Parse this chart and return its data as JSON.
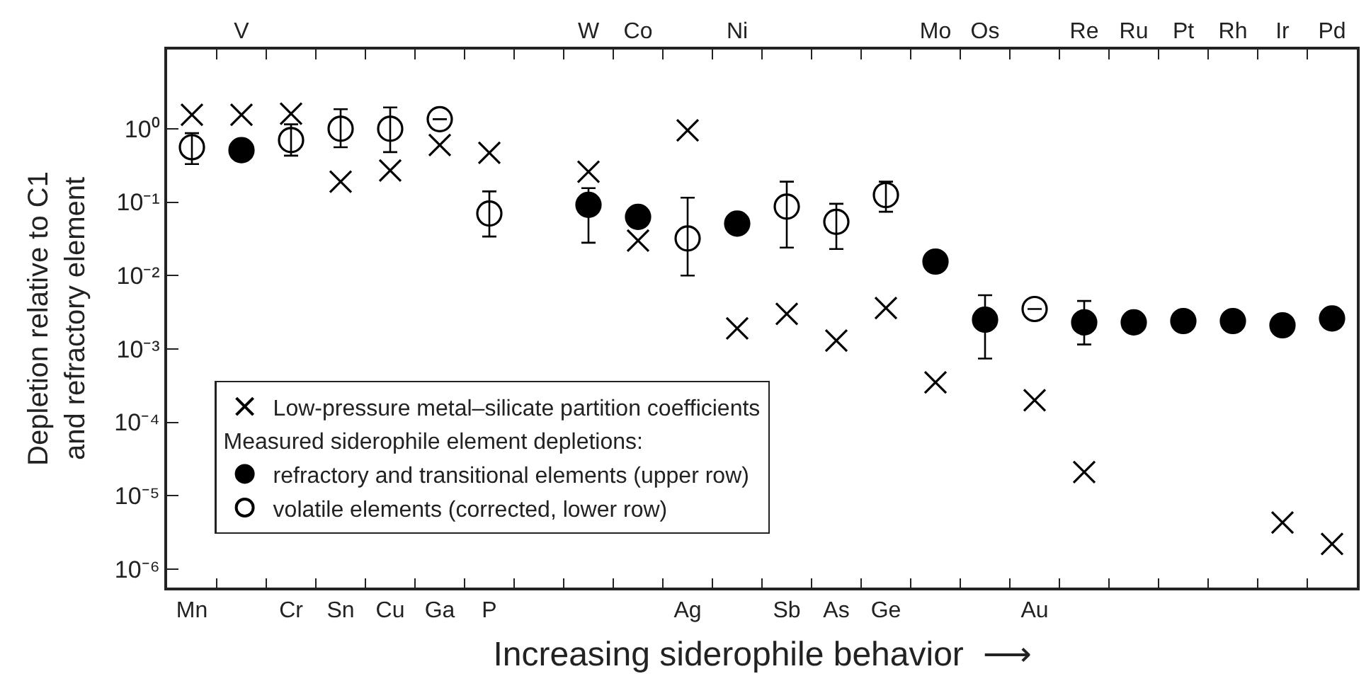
{
  "chart_data": {
    "type": "scatter",
    "xlabel": "Increasing siderophile behavior  ⟶",
    "ylabel": "Depletion relative to C1\nand refractory element",
    "categories": [
      "Mn",
      "V",
      "Cr",
      "Sn",
      "Cu",
      "Ga",
      "P",
      null,
      "W",
      "Co",
      "Ag",
      "Ni",
      "Sb",
      "As",
      "Ge",
      "Mo",
      "Os",
      "Au",
      "Re",
      "Ru",
      "Pt",
      "Rh",
      "Ir",
      "Pd"
    ],
    "log": "y",
    "ylim": [
      5.6e-07,
      12
    ],
    "yticks": [
      {
        "value": 1,
        "label": "10⁰"
      },
      {
        "value": 0.1,
        "label": "10⁻¹"
      },
      {
        "value": 0.01,
        "label": "10⁻²"
      },
      {
        "value": 0.001,
        "label": "10⁻³"
      },
      {
        "value": 0.0001,
        "label": "10⁻⁴"
      },
      {
        "value": 1e-05,
        "label": "10⁻⁵"
      },
      {
        "value": 1e-06,
        "label": "10⁻⁶"
      }
    ],
    "legend": "bottom left",
    "legend_title": "Measured siderophile element depletions:",
    "series": [
      {
        "name": "Low-pressure metal–silicate partition coefficients",
        "color": "#000000",
        "marker": "cross",
        "values": [
          1.55,
          1.55,
          1.6,
          0.19,
          0.27,
          0.6,
          0.47,
          null,
          0.26,
          0.03,
          0.95,
          0.0019,
          0.003,
          0.0013,
          0.0036,
          0.00035,
          null,
          0.0002,
          2.1e-05,
          null,
          null,
          null,
          4.3e-06,
          2.2e-06
        ]
      },
      {
        "name": "refractory and transitional elements (upper row)",
        "color": "#000000",
        "marker": "circle",
        "values": [
          null,
          0.51,
          null,
          null,
          null,
          null,
          null,
          null,
          0.092,
          0.063,
          null,
          0.051,
          null,
          null,
          null,
          0.0155,
          0.0025,
          null,
          0.0023,
          0.0023,
          0.0024,
          0.0024,
          0.0021,
          0.0026
        ],
        "errors": [
          null,
          null,
          null,
          null,
          null,
          null,
          null,
          null,
          [
            0.028,
            0.155
          ],
          null,
          null,
          null,
          null,
          null,
          null,
          null,
          [
            0.00074,
            0.0054
          ],
          null,
          [
            0.00115,
            0.0045
          ],
          null,
          null,
          null,
          null,
          null
        ]
      },
      {
        "name": "volatile elements (corrected, lower row)",
        "color": "#000000",
        "marker": "open circle",
        "values": [
          0.56,
          null,
          0.7,
          1.0,
          1.0,
          1.35,
          0.07,
          null,
          null,
          null,
          0.032,
          null,
          0.087,
          0.054,
          0.125,
          null,
          null,
          0.0035,
          null,
          null,
          null,
          null,
          null,
          null
        ],
        "errors": [
          [
            0.33,
            0.87
          ],
          null,
          [
            0.43,
            1.15
          ],
          [
            0.56,
            1.85
          ],
          [
            0.48,
            1.95
          ],
          null,
          [
            0.034,
            0.14
          ],
          null,
          null,
          null,
          [
            0.01,
            0.115
          ],
          null,
          [
            0.024,
            0.19
          ],
          [
            0.023,
            0.095
          ],
          [
            0.074,
            0.19
          ],
          null,
          null,
          null,
          null,
          null,
          null,
          null,
          null,
          null
        ]
      }
    ]
  }
}
